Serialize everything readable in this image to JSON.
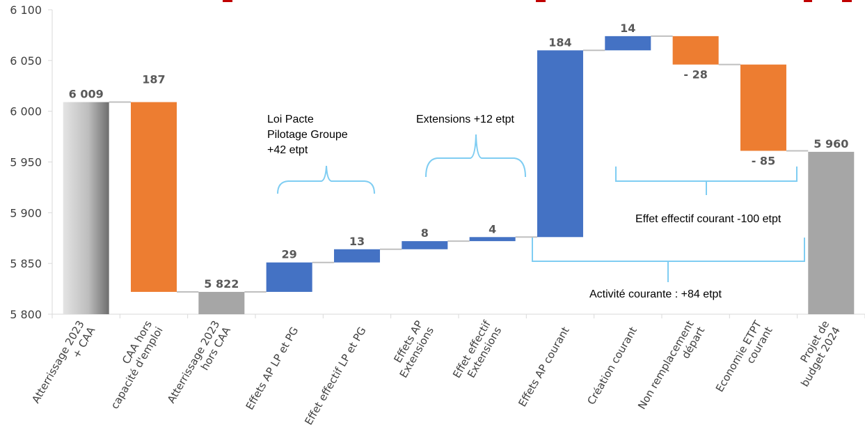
{
  "chart_data": {
    "type": "waterfall",
    "y_ticks": [
      "6 100",
      "6 050",
      "6 000",
      "5 950",
      "5 900",
      "5 850",
      "5 800"
    ],
    "ylim": [
      5800,
      6100
    ],
    "grid": false,
    "bars": [
      {
        "category": [
          "Atterrissage 2023",
          "+ CAA"
        ],
        "base": 5800,
        "top": 6009,
        "kind": "total-gradient",
        "label": "6 009"
      },
      {
        "category": [
          "CAA hors",
          "capacité d'emploi"
        ],
        "base": 5822,
        "top": 6009,
        "kind": "decrease",
        "label": "187"
      },
      {
        "category": [
          "Atterrissage 2023",
          "hors CAA"
        ],
        "base": 5800,
        "top": 5822,
        "kind": "total",
        "label": "5 822"
      },
      {
        "category": [
          "Effets AP LP et PG"
        ],
        "base": 5822,
        "top": 5851,
        "kind": "increase",
        "label": "29"
      },
      {
        "category": [
          "Effet effectif LP et PG"
        ],
        "base": 5851,
        "top": 5864,
        "kind": "increase",
        "label": "13"
      },
      {
        "category": [
          "Effets AP",
          "Extensions"
        ],
        "base": 5864,
        "top": 5872,
        "kind": "increase",
        "label": "8"
      },
      {
        "category": [
          "Effet effectif",
          "Extensions"
        ],
        "base": 5872,
        "top": 5876,
        "kind": "increase",
        "label": "4"
      },
      {
        "category": [
          "Effets AP courant"
        ],
        "base": 5876,
        "top": 6060,
        "kind": "increase",
        "label": "184"
      },
      {
        "category": [
          "Création courant"
        ],
        "base": 6060,
        "top": 6074,
        "kind": "increase",
        "label": "14"
      },
      {
        "category": [
          "Non remplacement",
          "départ"
        ],
        "base": 6046,
        "top": 6074,
        "kind": "decrease",
        "label": "- 28"
      },
      {
        "category": [
          "Economie ETPT",
          "courant"
        ],
        "base": 5961,
        "top": 6046,
        "kind": "decrease",
        "label": "- 85"
      },
      {
        "category": [
          "Projet de",
          "budget 2024"
        ],
        "base": 5800,
        "top": 5960,
        "kind": "total",
        "label": "5 960"
      }
    ],
    "annotations": [
      {
        "lines": [
          "Loi Pacte",
          "Pilotage Groupe",
          "+42 etpt"
        ]
      },
      {
        "lines": [
          "Extensions +12 etpt"
        ]
      },
      {
        "lines": [
          "Effet effectif courant -100 etpt"
        ]
      },
      {
        "lines": [
          "Activité courante : +84 etpt"
        ]
      }
    ],
    "colors": {
      "increase": "#4472c4",
      "decrease": "#ed7d31",
      "total": "#a6a6a6",
      "gradient_light": "#e4e4e4",
      "gradient_dark": "#6e6e6e",
      "bracket": "#7fcdf2",
      "connector": "#bfbfbf",
      "axis": "#d9d9d9",
      "top_text": "#c00000"
    }
  }
}
